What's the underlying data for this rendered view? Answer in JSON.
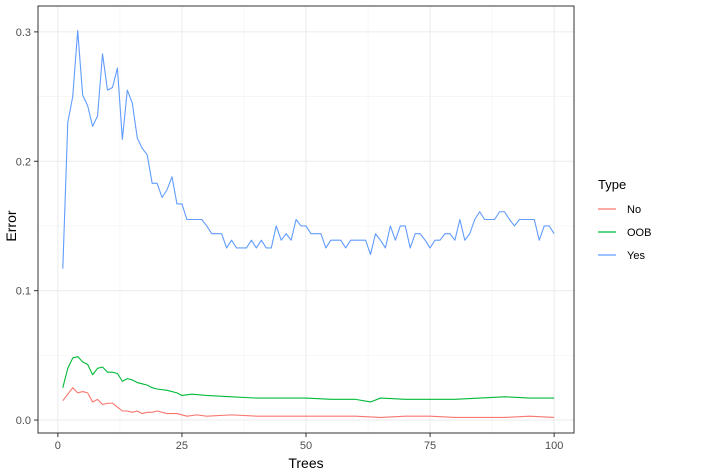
{
  "chart_data": {
    "type": "line",
    "xlabel": "Trees",
    "ylabel": "Error",
    "xlim": [
      -4,
      104
    ],
    "ylim": [
      -0.01,
      0.32
    ],
    "x_ticks": [
      0,
      25,
      50,
      75,
      100
    ],
    "y_ticks": [
      0.0,
      0.1,
      0.2,
      0.3
    ],
    "x_tick_labels": [
      "0",
      "25",
      "50",
      "75",
      "100"
    ],
    "y_tick_labels": [
      "0.0",
      "0.1",
      "0.2",
      "0.3"
    ],
    "grid": true,
    "legend": {
      "title": "Type",
      "placement": "right"
    },
    "series": [
      {
        "name": "No",
        "color": "#F8766D",
        "x": [
          1,
          2,
          3,
          4,
          5,
          6,
          7,
          8,
          9,
          10,
          11,
          12,
          13,
          14,
          15,
          16,
          17,
          18,
          19,
          20,
          22,
          24,
          26,
          28,
          30,
          35,
          40,
          45,
          50,
          55,
          60,
          65,
          70,
          75,
          80,
          85,
          90,
          95,
          100
        ],
        "y": [
          0.015,
          0.02,
          0.025,
          0.021,
          0.022,
          0.021,
          0.014,
          0.016,
          0.012,
          0.013,
          0.013,
          0.01,
          0.007,
          0.007,
          0.006,
          0.007,
          0.005,
          0.006,
          0.006,
          0.007,
          0.005,
          0.005,
          0.003,
          0.004,
          0.003,
          0.004,
          0.003,
          0.003,
          0.003,
          0.003,
          0.003,
          0.002,
          0.003,
          0.003,
          0.002,
          0.002,
          0.002,
          0.003,
          0.002
        ]
      },
      {
        "name": "OOB",
        "color": "#00BA38",
        "x": [
          1,
          2,
          3,
          4,
          5,
          6,
          7,
          8,
          9,
          10,
          11,
          12,
          13,
          14,
          15,
          16,
          17,
          18,
          19,
          20,
          22,
          24,
          25,
          27,
          30,
          35,
          40,
          45,
          50,
          55,
          60,
          63,
          65,
          70,
          75,
          80,
          85,
          90,
          95,
          100
        ],
        "y": [
          0.025,
          0.04,
          0.048,
          0.049,
          0.045,
          0.043,
          0.035,
          0.04,
          0.041,
          0.037,
          0.037,
          0.036,
          0.03,
          0.032,
          0.031,
          0.029,
          0.028,
          0.027,
          0.025,
          0.024,
          0.023,
          0.021,
          0.019,
          0.02,
          0.019,
          0.018,
          0.017,
          0.017,
          0.017,
          0.016,
          0.016,
          0.014,
          0.017,
          0.016,
          0.016,
          0.016,
          0.017,
          0.018,
          0.017,
          0.017
        ]
      },
      {
        "name": "Yes",
        "color": "#619CFF",
        "x": [
          1,
          2,
          3,
          4,
          5,
          6,
          7,
          8,
          9,
          10,
          11,
          12,
          13,
          14,
          15,
          16,
          17,
          18,
          19,
          20,
          21,
          22,
          23,
          24,
          25,
          26,
          27,
          28,
          29,
          30,
          31,
          32,
          33,
          34,
          35,
          36,
          37,
          38,
          39,
          40,
          41,
          42,
          43,
          44,
          45,
          46,
          47,
          48,
          49,
          50,
          51,
          52,
          53,
          54,
          55,
          56,
          57,
          58,
          59,
          60,
          61,
          62,
          63,
          64,
          65,
          66,
          67,
          68,
          69,
          70,
          71,
          72,
          73,
          74,
          75,
          76,
          77,
          78,
          79,
          80,
          81,
          82,
          83,
          84,
          85,
          86,
          87,
          88,
          89,
          90,
          91,
          92,
          93,
          94,
          95,
          96,
          97,
          98,
          99,
          100
        ],
        "y": [
          0.117,
          0.23,
          0.25,
          0.301,
          0.251,
          0.243,
          0.227,
          0.235,
          0.283,
          0.255,
          0.257,
          0.272,
          0.217,
          0.255,
          0.245,
          0.218,
          0.21,
          0.205,
          0.183,
          0.183,
          0.172,
          0.178,
          0.188,
          0.167,
          0.167,
          0.155,
          0.155,
          0.155,
          0.155,
          0.15,
          0.144,
          0.144,
          0.144,
          0.133,
          0.139,
          0.133,
          0.133,
          0.133,
          0.139,
          0.133,
          0.139,
          0.133,
          0.133,
          0.15,
          0.139,
          0.144,
          0.139,
          0.155,
          0.15,
          0.15,
          0.144,
          0.144,
          0.144,
          0.133,
          0.139,
          0.139,
          0.139,
          0.133,
          0.139,
          0.139,
          0.139,
          0.139,
          0.128,
          0.144,
          0.139,
          0.133,
          0.15,
          0.139,
          0.15,
          0.15,
          0.133,
          0.144,
          0.144,
          0.139,
          0.133,
          0.139,
          0.139,
          0.144,
          0.144,
          0.139,
          0.155,
          0.139,
          0.144,
          0.155,
          0.161,
          0.155,
          0.155,
          0.155,
          0.161,
          0.161,
          0.155,
          0.15,
          0.155,
          0.155,
          0.155,
          0.155,
          0.139,
          0.15,
          0.15,
          0.144
        ]
      }
    ]
  }
}
